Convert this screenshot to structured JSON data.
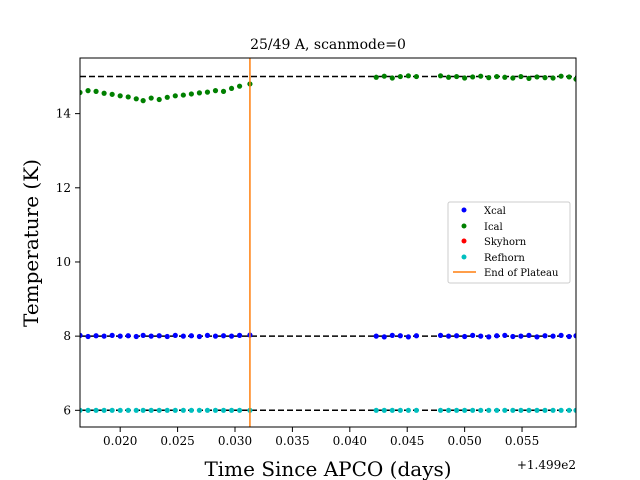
{
  "chart_data": {
    "type": "scatter",
    "title": "25/49 A, scanmode=0",
    "xlabel": "Time Since APCO (days)",
    "ylabel": "Temperature (K)",
    "x_offset_label": "+1.499e2",
    "xlim": [
      0.0165,
      0.0597
    ],
    "ylim": [
      5.55,
      15.5
    ],
    "x_ticks": [
      0.02,
      0.025,
      0.03,
      0.035,
      0.04,
      0.045,
      0.05,
      0.055
    ],
    "x_tick_labels": [
      "0.020",
      "0.025",
      "0.030",
      "0.035",
      "0.040",
      "0.045",
      "0.050",
      "0.055"
    ],
    "y_ticks": [
      6,
      8,
      10,
      12,
      14
    ],
    "y_tick_labels": [
      "6",
      "8",
      "10",
      "12",
      "14"
    ],
    "grid": false,
    "legend_position": "center-right",
    "hlines": [
      15.0,
      8.0,
      6.0
    ],
    "vline": {
      "x": 0.0313,
      "name": "End of Plateau",
      "color": "#ff7f0e"
    },
    "x": [
      0.0165,
      0.0172,
      0.0179,
      0.0186,
      0.0193,
      0.02,
      0.0207,
      0.0214,
      0.022,
      0.0227,
      0.0234,
      0.0241,
      0.0248,
      0.0255,
      0.0262,
      0.0269,
      0.0276,
      0.0283,
      0.029,
      0.0297,
      0.0304,
      0.0313,
      0.0423,
      0.043,
      0.0437,
      0.0444,
      0.0451,
      0.0458,
      0.0479,
      0.0486,
      0.0493,
      0.05,
      0.0507,
      0.0514,
      0.0521,
      0.0528,
      0.0535,
      0.0542,
      0.0549,
      0.0556,
      0.0563,
      0.057,
      0.0577,
      0.0584,
      0.0591,
      0.0597
    ],
    "series": [
      {
        "name": "Xcal",
        "color": "#0000ff",
        "values": [
          8.02,
          7.99,
          8.01,
          8.0,
          8.02,
          8.0,
          8.01,
          7.99,
          8.02,
          8.0,
          8.01,
          7.99,
          8.02,
          8.0,
          8.01,
          7.99,
          8.02,
          8.0,
          8.01,
          8.0,
          8.02,
          8.03,
          8.0,
          7.98,
          8.02,
          8.01,
          7.98,
          8.01,
          8.02,
          8.0,
          8.01,
          7.99,
          8.02,
          8.0,
          7.98,
          8.01,
          8.02,
          7.99,
          8.0,
          8.02,
          7.98,
          8.01,
          8.0,
          8.02,
          7.99,
          8.01
        ]
      },
      {
        "name": "Ical",
        "color": "#008000",
        "values": [
          14.57,
          14.62,
          14.6,
          14.55,
          14.52,
          14.48,
          14.45,
          14.4,
          14.35,
          14.42,
          14.38,
          14.44,
          14.48,
          14.5,
          14.53,
          14.56,
          14.58,
          14.62,
          14.6,
          14.68,
          14.74,
          14.8,
          14.98,
          15.01,
          14.96,
          15.0,
          15.02,
          15.0,
          15.02,
          14.98,
          15.0,
          14.96,
          14.99,
          15.01,
          14.97,
          15.0,
          14.98,
          14.96,
          15.0,
          14.95,
          14.99,
          14.97,
          14.96,
          15.01,
          14.99,
          14.93
        ]
      },
      {
        "name": "Skyhorn",
        "color": "#ff0000",
        "values": []
      },
      {
        "name": "Refhorn",
        "color": "#00bfbf",
        "values": [
          6.0,
          6.0,
          6.0,
          6.0,
          6.0,
          6.0,
          6.0,
          6.0,
          6.0,
          6.0,
          6.0,
          6.0,
          6.0,
          6.0,
          6.0,
          6.0,
          6.0,
          6.0,
          6.0,
          6.0,
          6.0,
          6.0,
          6.0,
          6.0,
          6.0,
          6.0,
          6.0,
          6.0,
          6.0,
          6.0,
          6.0,
          6.0,
          6.0,
          6.0,
          6.0,
          6.0,
          6.0,
          6.0,
          6.0,
          6.0,
          6.0,
          6.0,
          6.0,
          6.0,
          6.0,
          6.0
        ]
      }
    ],
    "legend": [
      "Xcal",
      "Ical",
      "Skyhorn",
      "Refhorn",
      "End of Plateau"
    ]
  }
}
